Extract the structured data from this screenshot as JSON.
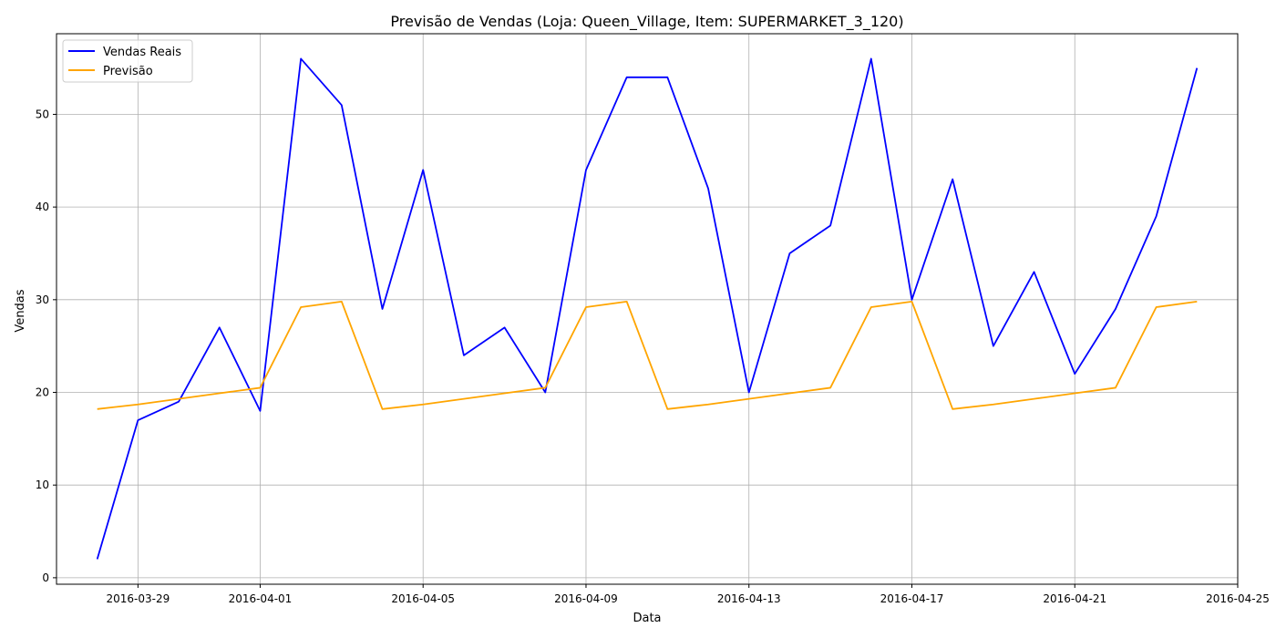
{
  "chart_data": {
    "type": "line",
    "title": "Previsão de Vendas (Loja: Queen_Village, Item: SUPERMARKET_3_120)",
    "xlabel": "Data",
    "ylabel": "Vendas",
    "x": [
      "2016-03-28",
      "2016-03-29",
      "2016-03-30",
      "2016-03-31",
      "2016-04-01",
      "2016-04-02",
      "2016-04-03",
      "2016-04-04",
      "2016-04-05",
      "2016-04-06",
      "2016-04-07",
      "2016-04-08",
      "2016-04-09",
      "2016-04-10",
      "2016-04-11",
      "2016-04-12",
      "2016-04-13",
      "2016-04-14",
      "2016-04-15",
      "2016-04-16",
      "2016-04-17",
      "2016-04-18",
      "2016-04-19",
      "2016-04-20",
      "2016-04-21",
      "2016-04-22",
      "2016-04-23",
      "2016-04-24"
    ],
    "series": [
      {
        "name": "Vendas Reais",
        "color": "#0000ff",
        "values": [
          2,
          17,
          19,
          27,
          18,
          56,
          51,
          29,
          44,
          24,
          27,
          20,
          44,
          54,
          54,
          42,
          20,
          35,
          38,
          56,
          30,
          43,
          25,
          33,
          22,
          29,
          39,
          55
        ]
      },
      {
        "name": "Previsão",
        "color": "#ffa500",
        "values": [
          18.2,
          18.7,
          19.3,
          19.9,
          20.5,
          29.2,
          29.8,
          18.2,
          18.7,
          19.3,
          19.9,
          20.5,
          29.2,
          29.8,
          18.2,
          18.7,
          19.3,
          19.9,
          20.5,
          29.2,
          29.8,
          18.2,
          18.7,
          19.3,
          19.9,
          20.5,
          29.2,
          29.8
        ]
      }
    ],
    "xlim": [
      "2016-03-27",
      "2016-04-25"
    ],
    "x_ticks": [
      "2016-03-29",
      "2016-04-01",
      "2016-04-05",
      "2016-04-09",
      "2016-04-13",
      "2016-04-17",
      "2016-04-21",
      "2016-04-25"
    ],
    "ylim": [
      -0.7,
      58.7
    ],
    "y_ticks": [
      0,
      10,
      20,
      30,
      40,
      50
    ],
    "grid": true,
    "legend_position": "top-left"
  }
}
